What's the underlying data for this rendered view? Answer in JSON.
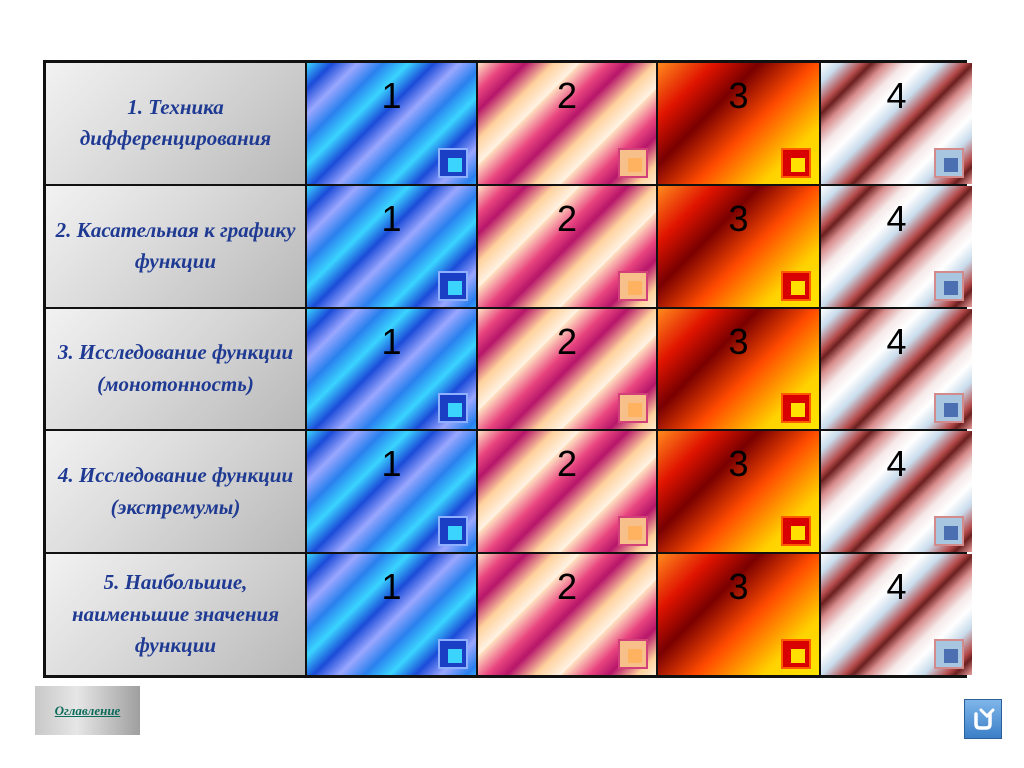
{
  "topics": [
    "1.      Техника дифференцирования",
    "2. Касательная к графику функции",
    "3. Исследование функции (монотонность)",
    "4. Исследование функции (экстремумы)",
    "5. Наибольшие, наименьшие значения функции"
  ],
  "columns": [
    "1",
    "2",
    "3",
    "4"
  ],
  "nav": {
    "toc_label": "Оглавление",
    "return_icon": "return-arrow-icon"
  },
  "colors": {
    "topic_text": "#1f3a93",
    "border": "#111111",
    "toc_text": "#0a6b5a"
  }
}
